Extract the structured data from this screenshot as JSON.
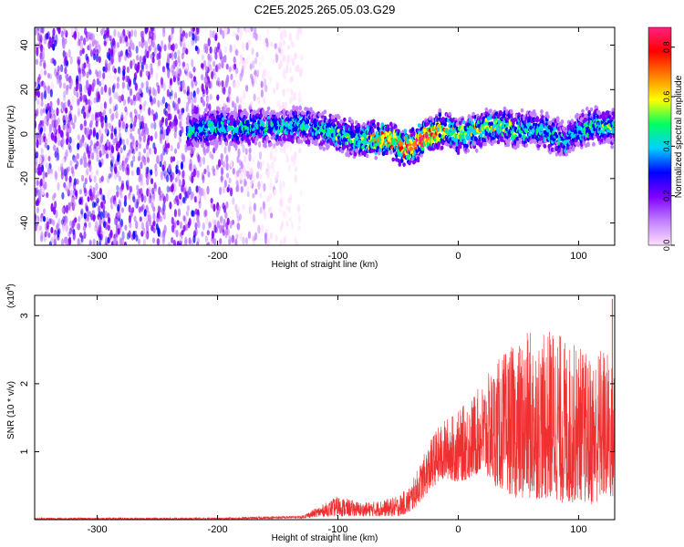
{
  "title": "C2E5.2025.265.05.03.G29",
  "chart_data": [
    {
      "type": "heatmap",
      "xlabel": "Height of straight line (km)",
      "ylabel": "Frequency (Hz)",
      "xlim": [
        -352,
        130
      ],
      "ylim": [
        -50,
        48
      ],
      "xticks": [
        -300,
        -200,
        -100,
        0,
        100
      ],
      "yticks": [
        -40,
        -20,
        0,
        20,
        40
      ],
      "xtick_labels": [
        "-300",
        "-200",
        "-100",
        "0",
        "100"
      ],
      "ytick_labels": [
        "-40",
        "-20",
        "0",
        "20",
        "40"
      ],
      "colorbar": {
        "label": "Normalized spectral amplitude",
        "range": [
          0.0,
          0.88
        ],
        "ticks": [
          0.0,
          0.2,
          0.4,
          0.6,
          0.8
        ],
        "tick_labels": [
          "0.0",
          "0.2",
          "0.4",
          "0.6",
          "0.8"
        ],
        "colors": [
          "#ffe0ff",
          "#c080ff",
          "#8000ff",
          "#0000ff",
          "#00d0ff",
          "#00ff60",
          "#ffff00",
          "#ff8000",
          "#ff0000",
          "#ff2080"
        ]
      },
      "noise_region": {
        "x_range": [
          -352,
          -130
        ],
        "level": 0.1
      },
      "ridge": {
        "x": [
          -225,
          -200,
          -170,
          -130,
          -100,
          -80,
          -60,
          -45,
          -30,
          -15,
          0,
          15,
          30,
          50,
          70,
          90,
          105,
          120,
          130
        ],
        "y": [
          2,
          3,
          3,
          4,
          0,
          -3,
          -2,
          -6,
          -3,
          2,
          -1,
          1,
          4,
          2,
          2,
          -3,
          3,
          4,
          2
        ],
        "intensity": [
          0.4,
          0.45,
          0.45,
          0.45,
          0.5,
          0.55,
          0.7,
          0.8,
          0.85,
          0.7,
          0.6,
          0.55,
          0.55,
          0.5,
          0.45,
          0.4,
          0.45,
          0.5,
          0.5
        ]
      }
    },
    {
      "type": "line",
      "xlabel": "Height of straight line (km)",
      "ylabel": "SNR (10 * v/v)",
      "multiplier_label": "(x10",
      "multiplier_exp": "4",
      "xlim": [
        -352,
        130
      ],
      "ylim": [
        0,
        3.3
      ],
      "xticks": [
        -300,
        -200,
        -100,
        0,
        100
      ],
      "yticks": [
        1,
        2,
        3
      ],
      "xtick_labels": [
        "-300",
        "-200",
        "-100",
        "0",
        "100"
      ],
      "ytick_labels": [
        "1",
        "2",
        "3"
      ],
      "color": "#f03030",
      "envelope": {
        "x": [
          -352,
          -200,
          -130,
          -110,
          -100,
          -90,
          -80,
          -60,
          -50,
          -40,
          -30,
          -20,
          -10,
          0,
          10,
          20,
          30,
          40,
          50,
          60,
          70,
          80,
          90,
          100,
          110,
          120,
          130
        ],
        "lower": [
          0.0,
          0.0,
          0.02,
          0.05,
          0.05,
          0.05,
          0.05,
          0.05,
          0.05,
          0.1,
          0.3,
          0.5,
          0.6,
          0.55,
          0.6,
          0.7,
          0.5,
          0.4,
          0.3,
          0.3,
          0.3,
          0.3,
          0.2,
          0.3,
          0.2,
          0.3,
          0.3
        ],
        "upper": [
          0.03,
          0.03,
          0.06,
          0.25,
          0.35,
          0.3,
          0.25,
          0.3,
          0.35,
          0.5,
          0.9,
          1.3,
          1.5,
          1.6,
          1.8,
          2.0,
          2.3,
          2.5,
          2.6,
          2.8,
          2.7,
          2.9,
          2.6,
          2.6,
          2.4,
          2.6,
          2.3
        ]
      },
      "spikes": [
        {
          "x": 128,
          "y": 3.25
        }
      ]
    }
  ]
}
